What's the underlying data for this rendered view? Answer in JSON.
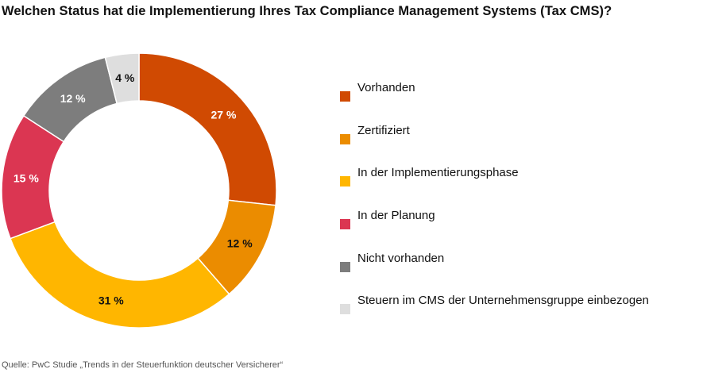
{
  "title": "Welchen Status hat die Implementierung Ihres Tax Compliance Management Systems (Tax CMS)?",
  "source": "Quelle: PwC Studie „Trends in der Steuerfunktion deutscher Versicherer“",
  "chart_data": {
    "type": "pie",
    "variant": "donut",
    "title": "Welchen Status hat die Implementierung Ihres Tax Compliance Management Systems (Tax CMS)?",
    "unit": "%",
    "legend_position": "right",
    "categories": [
      "Vorhanden",
      "Zertifiziert",
      "In der Implementierungsphase",
      "In der Planung",
      "Nicht vorhanden",
      "Steuern im CMS der Unternehmensgruppe einbezogen"
    ],
    "values": [
      27,
      12,
      31,
      15,
      12,
      4
    ],
    "labels": [
      "27 %",
      "12 %",
      "31 %",
      "15 %",
      "12 %",
      "4 %"
    ],
    "colors": [
      "#d04a02",
      "#eb8c00",
      "#ffb600",
      "#db3652",
      "#7d7d7d",
      "#dedede"
    ],
    "label_colors": [
      "#ffffff",
      "#111111",
      "#111111",
      "#ffffff",
      "#ffffff",
      "#111111"
    ]
  }
}
